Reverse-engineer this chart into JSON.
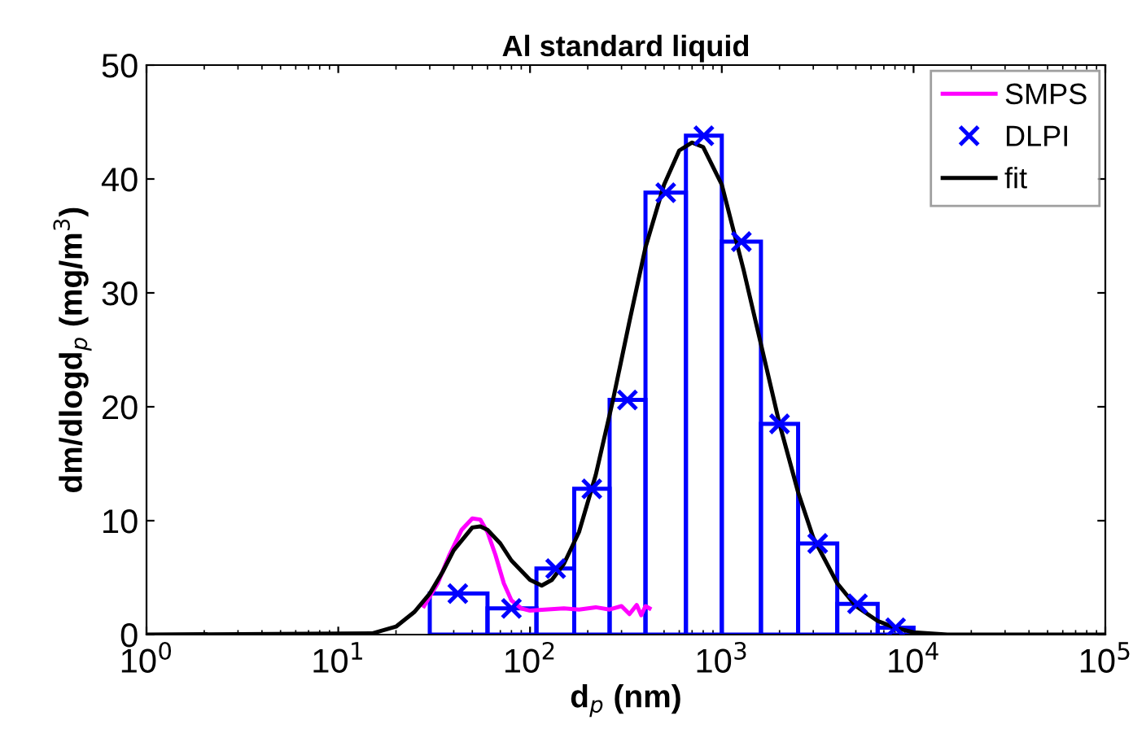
{
  "chart_data": {
    "type": "histogram",
    "title": "Al standard liquid",
    "xlabel": "d$_{p}$ (nm)",
    "ylabel": "dm/dlogd$_{p}$ (mg/m$^{3}$)",
    "bins": [
      30,
      60,
      108,
      170,
      260,
      400,
      650,
      1000,
      1600,
      2500,
      4000,
      6500,
      10000
    ],
    "values": [
      3.6,
      2.3,
      5.8,
      12.8,
      20.6,
      38.8,
      43.8,
      34.5,
      18.5,
      8.0,
      2.7,
      0.6
    ],
    "color": "#0000ff",
    "series": [
      {
        "name": "SMPS",
        "type": "line",
        "color": "#ff00ff",
        "x": [
          28,
          33,
          38,
          44,
          50,
          55,
          60,
          66,
          73,
          80,
          90,
          100,
          120,
          150,
          180,
          220,
          260,
          300,
          330,
          360,
          380,
          400,
          420
        ],
        "values": [
          2.5,
          4.5,
          7,
          9.2,
          10.2,
          10.1,
          9,
          7,
          4.5,
          3,
          2.3,
          2.1,
          2.2,
          2.3,
          2.2,
          2.4,
          2.2,
          2.5,
          1.8,
          2.6,
          1.7,
          2.5,
          2.3
        ]
      },
      {
        "name": "DLPI",
        "type": "scatter",
        "marker": "cross",
        "color": "#0000ff",
        "x": [
          42,
          80,
          136,
          210,
          322,
          510,
          806,
          1265,
          2000,
          3162,
          5100,
          8060
        ],
        "values": [
          3.6,
          2.3,
          5.8,
          12.8,
          20.6,
          38.8,
          43.8,
          34.5,
          18.5,
          8.0,
          2.7,
          0.6
        ]
      },
      {
        "name": "fit",
        "type": "line",
        "color": "#000000",
        "x": [
          1,
          15,
          20,
          25,
          30,
          35,
          40,
          50,
          55,
          60,
          70,
          80,
          100,
          115,
          130,
          150,
          180,
          220,
          270,
          330,
          400,
          500,
          600,
          700,
          800,
          1000,
          1300,
          1600,
          2000,
          2500,
          3000,
          4000,
          5000,
          6500,
          8000,
          10000,
          15000,
          100000
        ],
        "values": [
          0,
          0.1,
          0.7,
          2,
          3.6,
          5.5,
          7.4,
          9.4,
          9.5,
          9.2,
          8,
          6.5,
          4.8,
          4.3,
          4.8,
          6.2,
          9,
          14,
          20.5,
          27.5,
          34,
          39.5,
          42.5,
          43.2,
          42.8,
          39.5,
          32,
          25.5,
          18.5,
          12.5,
          8.5,
          4.5,
          2.5,
          1.2,
          0.6,
          0.2,
          0,
          0
        ]
      }
    ],
    "log": "x",
    "xlim": [
      1,
      100000
    ],
    "xticks": [
      {
        "value": 1,
        "label": "10$^{0}$"
      },
      {
        "value": 10,
        "label": "10$^{1}$"
      },
      {
        "value": 100,
        "label": "10$^{2}$"
      },
      {
        "value": 1000,
        "label": "10$^{3}$"
      },
      {
        "value": 10000,
        "label": "10$^{4}$"
      },
      {
        "value": 100000,
        "label": "10$^{5}$"
      }
    ],
    "ylim": [
      0,
      50
    ],
    "yticks": [
      0,
      10,
      20,
      30,
      40,
      50
    ],
    "grid": false,
    "legend": "top right"
  }
}
